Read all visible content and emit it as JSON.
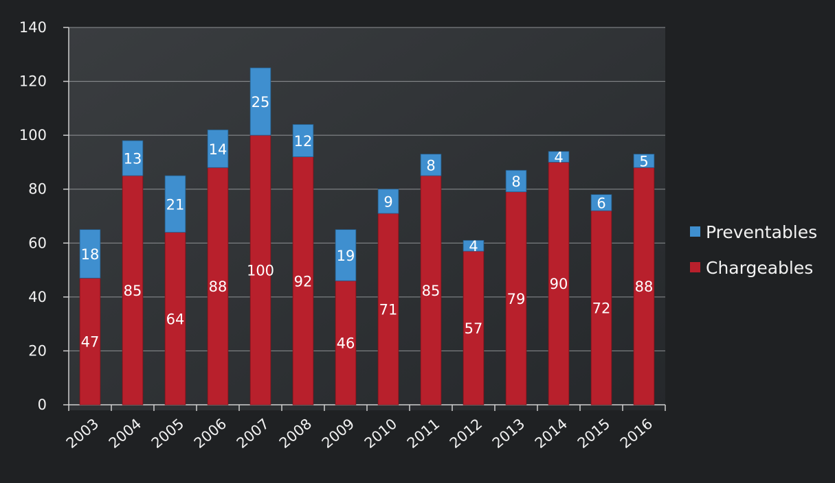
{
  "chart_data": {
    "type": "bar",
    "stacked": true,
    "categories": [
      "2003",
      "2004",
      "2005",
      "2006",
      "2007",
      "2008",
      "2009",
      "2010",
      "2011",
      "2012",
      "2013",
      "2014",
      "2015",
      "2016"
    ],
    "series": [
      {
        "name": "Chargeables",
        "color": "#b8202c",
        "values": [
          47,
          85,
          64,
          88,
          100,
          92,
          46,
          71,
          85,
          57,
          79,
          90,
          72,
          88
        ]
      },
      {
        "name": "Preventables",
        "color": "#3f8fcf",
        "values": [
          18,
          13,
          21,
          14,
          25,
          12,
          19,
          9,
          8,
          4,
          8,
          4,
          6,
          5
        ]
      }
    ],
    "ylim": [
      0,
      140
    ],
    "yticks": [
      "0",
      "20",
      "40",
      "60",
      "80",
      "100",
      "120",
      "140"
    ],
    "grid": true,
    "legend_position": "right",
    "background": "#24262a"
  }
}
